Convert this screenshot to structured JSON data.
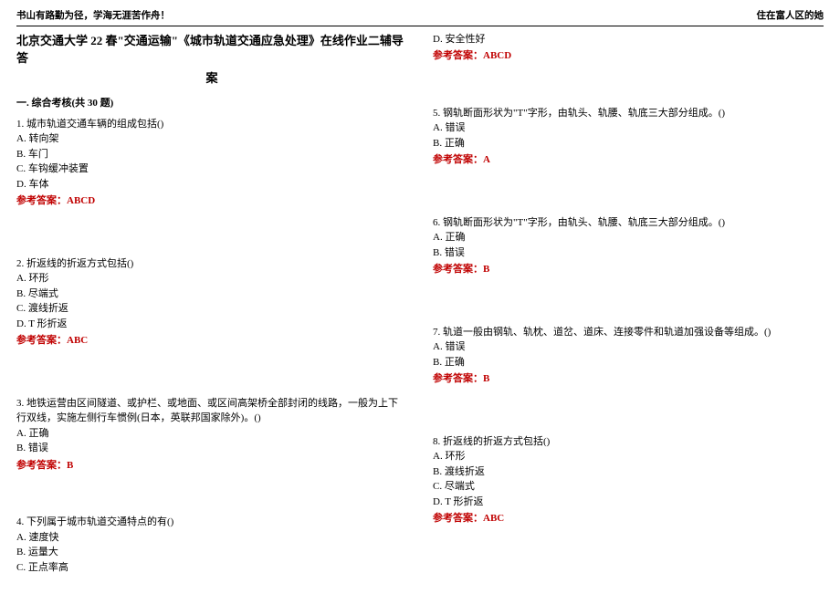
{
  "header": {
    "left": "书山有路勤为径，学海无涯苦作舟！",
    "right": "住在富人区的她"
  },
  "title_line1": "北京交通大学 22 春\"交通运输\"《城市轨道交通应急处理》在线作业二辅导答",
  "title_line2": "案",
  "section_header": "一. 综合考核(共 30 题)",
  "answer_label": "参考答案：",
  "q1": {
    "stem": "1. 城市轨道交通车辆的组成包括()",
    "a": "A. 转向架",
    "b": "B. 车门",
    "c": "C. 车钩缓冲装置",
    "d": "D. 车体",
    "ans": "ABCD"
  },
  "q2": {
    "stem": "2. 折返线的折返方式包括()",
    "a": "A. 环形",
    "b": "B. 尽端式",
    "c": "C. 渡线折返",
    "d": "D. T 形折返",
    "ans": "ABC"
  },
  "q3": {
    "stem": "3. 地铁运营由区间隧道、或护栏、或地面、或区间高架桥全部封闭的线路，一般为上下行双线，实施左侧行车惯例(日本，英联邦国家除外)。()",
    "a": "A. 正确",
    "b": "B. 错误",
    "ans": "B"
  },
  "q4": {
    "stem": "4. 下列属于城市轨道交通特点的有()",
    "a": "A. 速度快",
    "b": "B. 运量大",
    "c": "C. 正点率高",
    "d": "D. 安全性好",
    "ans": "ABCD"
  },
  "q5": {
    "stem": "5. 钢轨断面形状为\"T\"字形，由轨头、轨腰、轨底三大部分组成。()",
    "a": "A. 错误",
    "b": "B. 正确",
    "ans": "A"
  },
  "q6": {
    "stem": "6. 钢轨断面形状为\"T\"字形，由轨头、轨腰、轨底三大部分组成。()",
    "a": "A. 正确",
    "b": "B. 错误",
    "ans": "B"
  },
  "q7": {
    "stem": "7. 轨道一般由钢轨、轨枕、道岔、道床、连接零件和轨道加强设备等组成。()",
    "a": "A. 错误",
    "b": "B. 正确",
    "ans": "B"
  },
  "q8": {
    "stem": "8. 折返线的折返方式包括()",
    "a": "A. 环形",
    "b": "B. 渡线折返",
    "c": "C. 尽端式",
    "d": "D. T 形折返",
    "ans": "ABC"
  }
}
